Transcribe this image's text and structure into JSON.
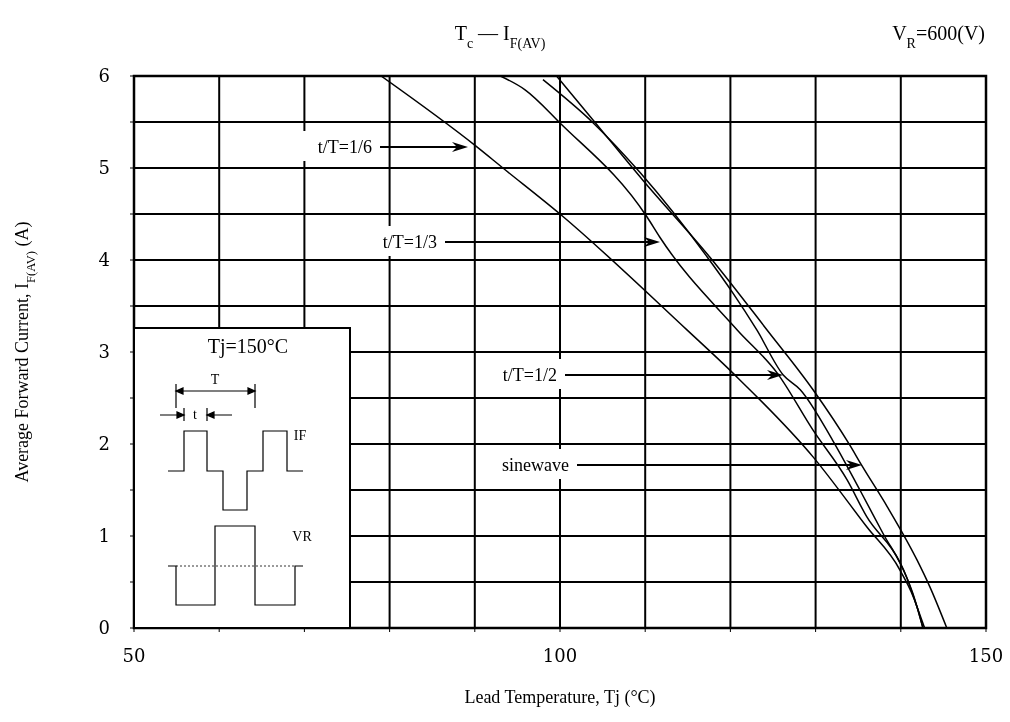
{
  "chart_data": {
    "type": "line",
    "title": "T$_{c}$ — I$_{F(AV)}$",
    "subtitle": "V$_{R}$=600(V)",
    "xlabel": "Lead Temperature, Tj (°C)",
    "ylabel": "Average Forward Current, I$_{F(AV)}$ (A)",
    "xlim": [
      50,
      150
    ],
    "xticks": [
      50,
      {
        "value": 60,
        "label": null
      },
      {
        "value": 70,
        "label": null
      },
      {
        "value": 80,
        "label": null
      },
      {
        "value": 90,
        "label": null
      },
      100,
      {
        "value": 110,
        "label": null
      },
      {
        "value": 120,
        "label": null
      },
      {
        "value": 130,
        "label": null
      },
      {
        "value": 140,
        "label": null
      },
      150
    ],
    "ylim": [
      0,
      6
    ],
    "yticks": [
      0,
      {
        "value": 0.5,
        "label": null
      },
      1,
      {
        "value": 1.5,
        "label": null
      },
      2,
      {
        "value": 2.5,
        "label": null
      },
      3,
      {
        "value": 3.5,
        "label": null
      },
      4,
      {
        "value": 4.5,
        "label": null
      },
      5,
      {
        "value": 5.5,
        "label": null
      },
      6
    ],
    "grid": true,
    "marker": "none",
    "line_style": "solid",
    "series": [
      {
        "color": "#000000",
        "x": [
          79,
          90.1,
          93.3,
          100,
          114.9,
          120.3,
          129.7,
          136.0,
          139.9,
          141.9,
          142.6
        ],
        "values": [
          6,
          5.24,
          5.0,
          4.5,
          3.24,
          2.77,
          1.86,
          1.1,
          0.63,
          0.23,
          0
        ]
      },
      {
        "color": "#000000",
        "x": [
          93.0,
          95.9,
          100,
          110.2,
          111.7,
          120.8,
          125.5,
          129.7,
          133.7,
          136.0,
          139.9,
          141.4,
          142.6
        ],
        "values": [
          6,
          5.85,
          5.49,
          4.47,
          4.25,
          3.24,
          2.77,
          2.15,
          1.61,
          1.21,
          0.71,
          0.38,
          0
        ]
      },
      {
        "color": "#000000",
        "x": [
          98.0,
          103.9,
          109.4,
          117.3,
          120.3,
          123.1,
          126.2,
          128.2,
          132.0,
          135.2,
          137.9,
          140.7,
          141.9,
          142.8
        ],
        "values": [
          5.96,
          5.49,
          4.95,
          4.03,
          3.64,
          3.24,
          2.75,
          2.59,
          2.04,
          1.5,
          1.03,
          0.55,
          0.23,
          0
        ]
      },
      {
        "color": "#000000",
        "x": [
          99.6,
          103.9,
          109.7,
          117.6,
          124.3,
          129.7,
          134.0,
          135.4,
          138.4,
          141.9,
          143.4,
          145.4
        ],
        "values": [
          6,
          5.52,
          4.87,
          4.03,
          3.24,
          2.59,
          1.99,
          1.77,
          1.32,
          0.74,
          0.45,
          0
        ]
      }
    ],
    "annotations": [
      "t/T=1/6",
      "t/T=1/3",
      "t/T=1/2",
      "sinewave",
      "Tj=150°C",
      "T",
      "t",
      "IF",
      "VR"
    ]
  }
}
